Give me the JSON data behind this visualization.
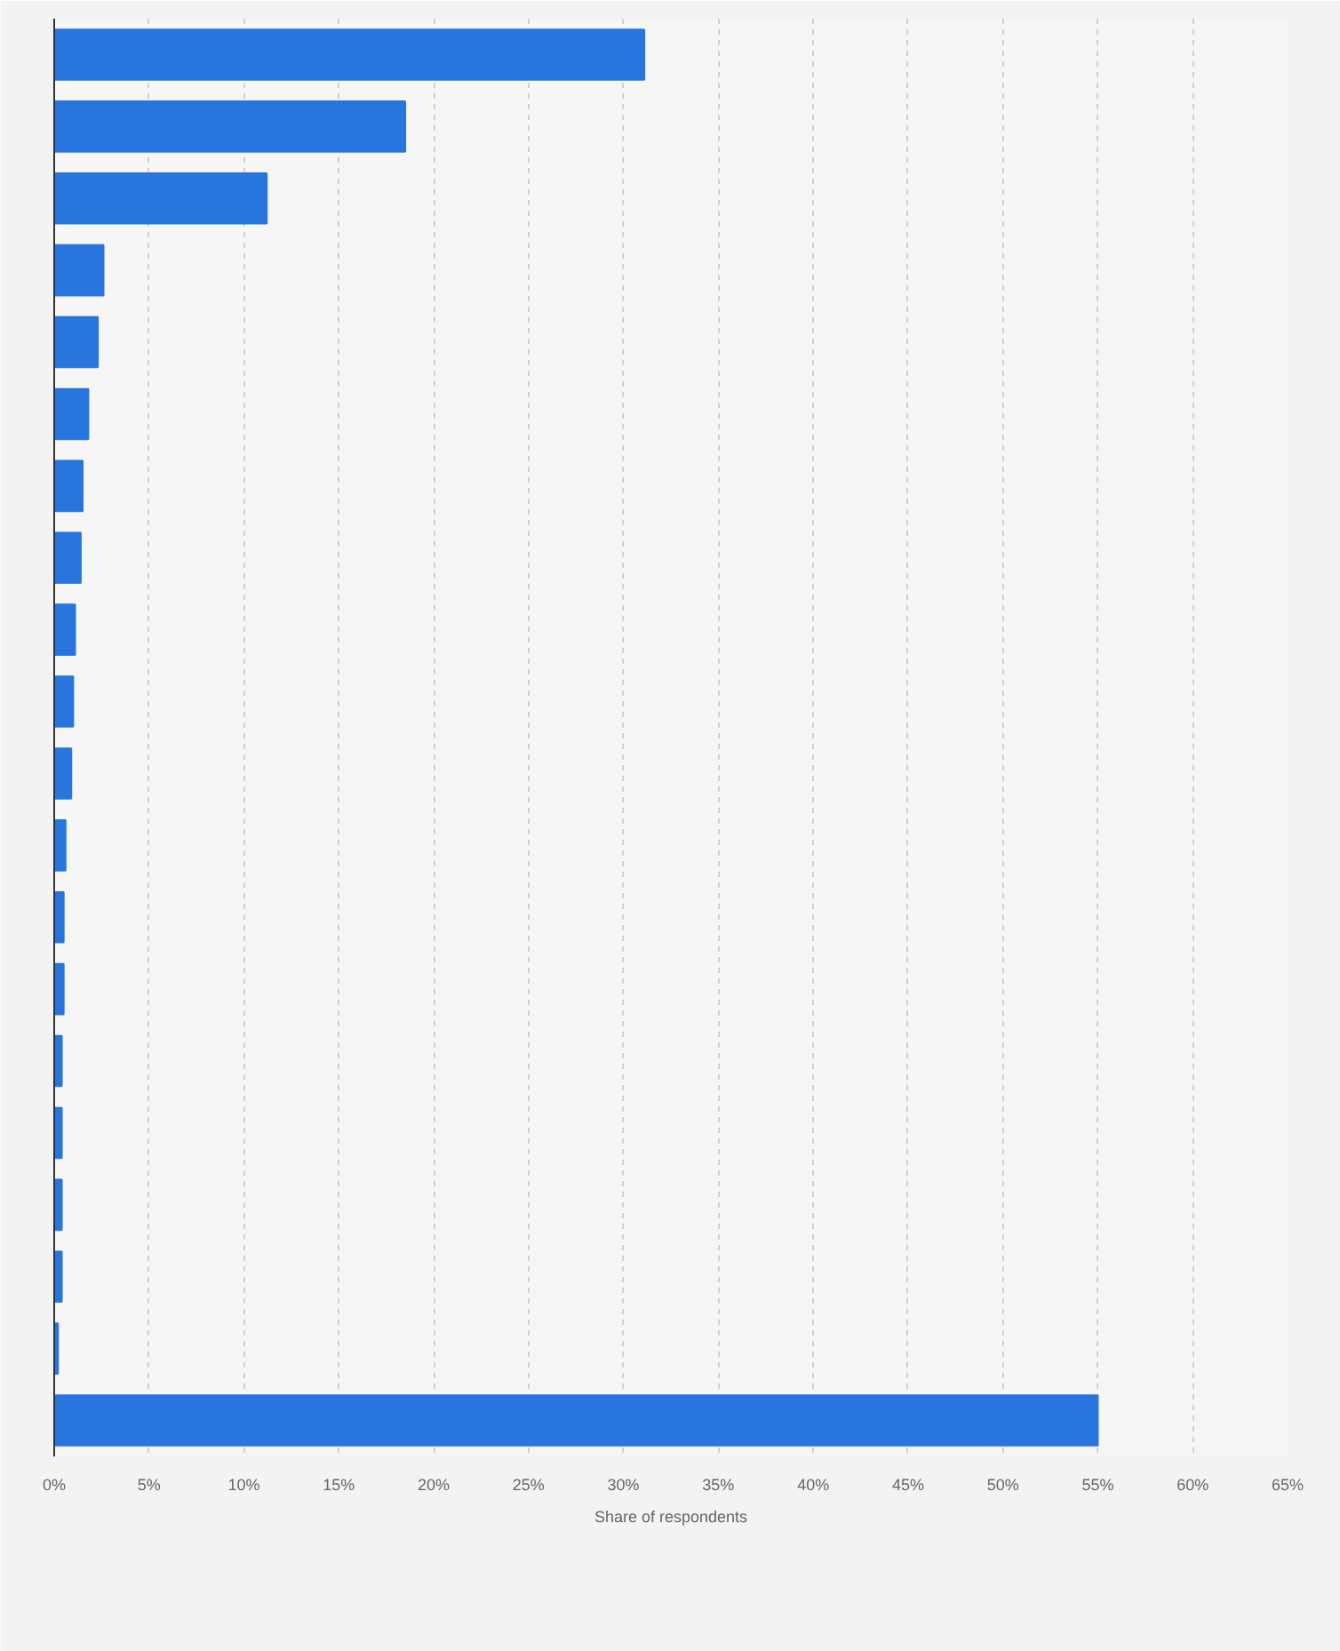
{
  "chart_data": {
    "type": "bar",
    "orientation": "horizontal",
    "xlabel": "Share of respondents",
    "categories": [
      null,
      null,
      null,
      null,
      null,
      null,
      null,
      null,
      null,
      null,
      null,
      null,
      null,
      null,
      null,
      null,
      null,
      null,
      null,
      null
    ],
    "values": [
      31.1,
      18.5,
      11.2,
      2.6,
      2.3,
      1.8,
      1.5,
      1.4,
      1.1,
      1.0,
      0.9,
      0.6,
      0.5,
      0.5,
      0.4,
      0.4,
      0.4,
      0.4,
      0.2,
      55
    ],
    "color": "#2876dd",
    "xlim": [
      0,
      65
    ],
    "xticks": [
      {
        "value": 0,
        "label": "0%"
      },
      {
        "value": 5,
        "label": "5%"
      },
      {
        "value": 10,
        "label": "10%"
      },
      {
        "value": 15,
        "label": "15%"
      },
      {
        "value": 20,
        "label": "20%"
      },
      {
        "value": 25,
        "label": "25%"
      },
      {
        "value": 30,
        "label": "30%"
      },
      {
        "value": 35,
        "label": "35%"
      },
      {
        "value": 40,
        "label": "40%"
      },
      {
        "value": 45,
        "label": "45%"
      },
      {
        "value": 50,
        "label": "50%"
      },
      {
        "value": 55,
        "label": "55%"
      },
      {
        "value": 60,
        "label": "60%"
      },
      {
        "value": 65,
        "label": "65%"
      }
    ],
    "grid": "x"
  }
}
